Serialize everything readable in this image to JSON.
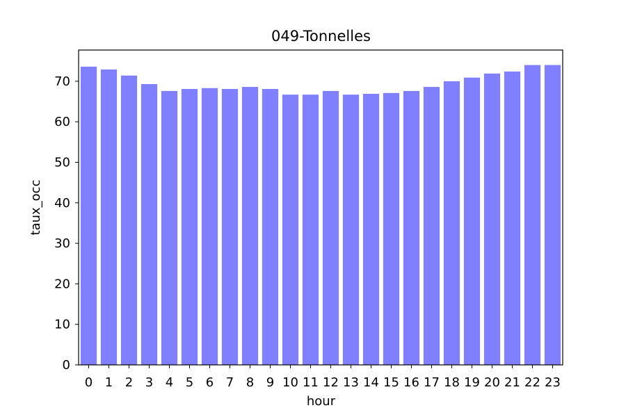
{
  "chart_data": {
    "type": "bar",
    "title": "049-Tonnelles",
    "xlabel": "hour",
    "ylabel": "taux_occ",
    "categories": [
      "0",
      "1",
      "2",
      "3",
      "4",
      "5",
      "6",
      "7",
      "8",
      "9",
      "10",
      "11",
      "12",
      "13",
      "14",
      "15",
      "16",
      "17",
      "18",
      "19",
      "20",
      "21",
      "22",
      "23"
    ],
    "values": [
      73.6,
      72.9,
      71.4,
      69.3,
      67.6,
      68.1,
      68.3,
      68.1,
      68.6,
      68.1,
      66.7,
      66.7,
      67.6,
      66.7,
      66.9,
      67.1,
      67.6,
      68.6,
      70.0,
      70.9,
      71.9,
      72.4,
      74.0,
      74.0
    ],
    "yticks": [
      0,
      10,
      20,
      30,
      40,
      50,
      60,
      70
    ],
    "ylim": [
      0,
      77.7
    ],
    "bar_color": "#8080ff",
    "grid": false,
    "legend": "none"
  }
}
